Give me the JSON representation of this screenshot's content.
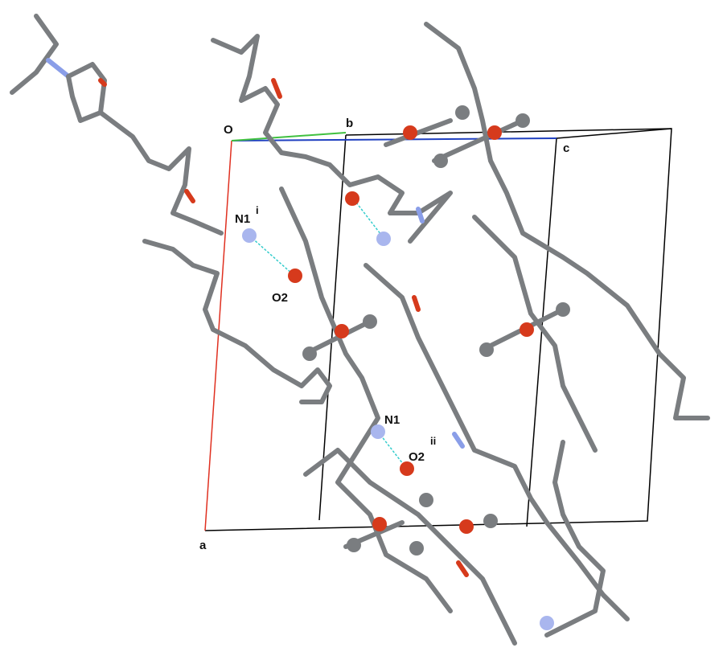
{
  "cell_axes": {
    "origin": "O",
    "a": "a",
    "b": "b",
    "c": "c"
  },
  "atom_labels": [
    {
      "label": "N1",
      "symmetry": "i"
    },
    {
      "label": "O2"
    },
    {
      "label": "N1"
    },
    {
      "label": "O2",
      "symmetry": "ii"
    }
  ]
}
